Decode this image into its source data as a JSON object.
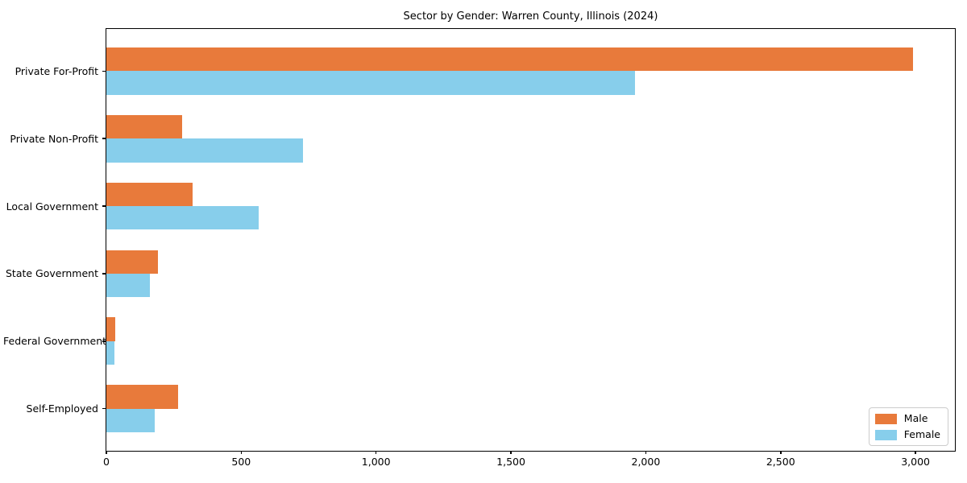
{
  "chart_data": {
    "type": "bar",
    "orientation": "horizontal",
    "title": "Sector by Gender: Warren County, Illinois (2024)",
    "categories": [
      "Private For-Profit",
      "Private Non-Profit",
      "Local Government",
      "State Government",
      "Federal Government",
      "Self-Employed"
    ],
    "series": [
      {
        "name": "Male",
        "color": "#E87A3B",
        "values": [
          2990,
          280,
          320,
          190,
          32,
          265
        ]
      },
      {
        "name": "Female",
        "color": "#87CEEB",
        "values": [
          1960,
          730,
          565,
          160,
          29,
          180
        ]
      }
    ],
    "xlabel": "",
    "ylabel": "",
    "xlim": [
      0,
      3146
    ],
    "xticks": [
      0,
      500,
      1000,
      1500,
      2000,
      2500,
      3000
    ],
    "xtick_labels": [
      "0",
      "500",
      "1,000",
      "1,500",
      "2,000",
      "2,500",
      "3,000"
    ],
    "grid": false,
    "legend": {
      "position": "lower right",
      "entries": [
        "Male",
        "Female"
      ]
    }
  },
  "colors": {
    "male": "#E87A3B",
    "female": "#87CEEB",
    "axis": "#000000",
    "legend_border": "#cccccc",
    "background": "#ffffff"
  }
}
